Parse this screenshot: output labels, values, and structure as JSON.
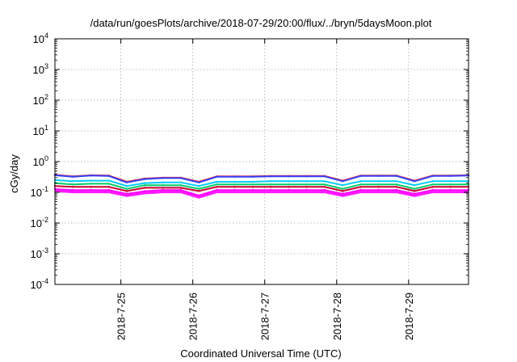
{
  "chart_data": {
    "type": "line",
    "title": "/data/run/goesPlots/archive/2018-07-29/20:00/flux/../bryn/5daysMoon.plot",
    "xlabel": "Coordinated Universal Time (UTC)",
    "ylabel": "cGy/day",
    "yscale": "log",
    "ylim": [
      0.0001,
      10000
    ],
    "xlim": [
      "2018-07-24T02:00",
      "2018-07-29T20:00"
    ],
    "grid": true,
    "legend": "none",
    "yticks": [
      {
        "base": "10",
        "exp": "-4",
        "value": 0.0001
      },
      {
        "base": "10",
        "exp": "-3",
        "value": 0.001
      },
      {
        "base": "10",
        "exp": "-2",
        "value": 0.01
      },
      {
        "base": "10",
        "exp": "-1",
        "value": 0.1
      },
      {
        "base": "10",
        "exp": "0",
        "value": 1
      },
      {
        "base": "10",
        "exp": "1",
        "value": 10
      },
      {
        "base": "10",
        "exp": "2",
        "value": 100
      },
      {
        "base": "10",
        "exp": "3",
        "value": 1000
      },
      {
        "base": "10",
        "exp": "4",
        "value": 10000
      }
    ],
    "xticks": [
      {
        "label": "2018-7-25",
        "value": "2018-07-25T00:00"
      },
      {
        "label": "2018-7-26",
        "value": "2018-07-26T00:00"
      },
      {
        "label": "2018-7-27",
        "value": "2018-07-27T00:00"
      },
      {
        "label": "2018-7-28",
        "value": "2018-07-28T00:00"
      },
      {
        "label": "2018-7-29",
        "value": "2018-07-29T00:00"
      }
    ],
    "x": [
      "2018-07-24T02:00",
      "2018-07-24T08:00",
      "2018-07-24T14:00",
      "2018-07-24T20:00",
      "2018-07-25T02:00",
      "2018-07-25T08:00",
      "2018-07-25T14:00",
      "2018-07-25T20:00",
      "2018-07-26T02:00",
      "2018-07-26T08:00",
      "2018-07-26T14:00",
      "2018-07-26T20:00",
      "2018-07-27T02:00",
      "2018-07-27T08:00",
      "2018-07-27T14:00",
      "2018-07-27T20:00",
      "2018-07-28T02:00",
      "2018-07-28T08:00",
      "2018-07-28T14:00",
      "2018-07-28T20:00",
      "2018-07-29T02:00",
      "2018-07-29T08:00",
      "2018-07-29T14:00",
      "2018-07-29T20:00"
    ],
    "series": [
      {
        "color": "#ff00ff",
        "style": "filled-spiky",
        "values": [
          0.13,
          0.12,
          0.12,
          0.12,
          0.09,
          0.11,
          0.12,
          0.12,
          0.08,
          0.12,
          0.12,
          0.12,
          0.12,
          0.12,
          0.12,
          0.12,
          0.09,
          0.12,
          0.12,
          0.12,
          0.09,
          0.12,
          0.12,
          0.12
        ]
      },
      {
        "color": "#cc0033",
        "values": [
          0.16,
          0.15,
          0.15,
          0.15,
          0.11,
          0.14,
          0.14,
          0.14,
          0.11,
          0.15,
          0.15,
          0.15,
          0.15,
          0.15,
          0.15,
          0.15,
          0.11,
          0.15,
          0.15,
          0.15,
          0.11,
          0.15,
          0.15,
          0.15
        ]
      },
      {
        "color": "#00cc66",
        "values": [
          0.2,
          0.18,
          0.19,
          0.19,
          0.13,
          0.17,
          0.17,
          0.17,
          0.13,
          0.18,
          0.18,
          0.18,
          0.18,
          0.18,
          0.18,
          0.18,
          0.13,
          0.18,
          0.18,
          0.18,
          0.13,
          0.18,
          0.18,
          0.18
        ]
      },
      {
        "color": "#00ccff",
        "values": [
          0.25,
          0.23,
          0.24,
          0.24,
          0.16,
          0.2,
          0.21,
          0.21,
          0.16,
          0.22,
          0.22,
          0.22,
          0.23,
          0.23,
          0.23,
          0.23,
          0.17,
          0.23,
          0.23,
          0.23,
          0.17,
          0.23,
          0.23,
          0.23
        ]
      },
      {
        "color": "#ff2222",
        "values": [
          0.37,
          0.33,
          0.36,
          0.35,
          0.22,
          0.28,
          0.3,
          0.3,
          0.22,
          0.33,
          0.33,
          0.33,
          0.34,
          0.34,
          0.34,
          0.34,
          0.24,
          0.35,
          0.35,
          0.35,
          0.24,
          0.35,
          0.35,
          0.36
        ]
      },
      {
        "color": "#3344ff",
        "values": [
          0.36,
          0.32,
          0.35,
          0.34,
          0.21,
          0.27,
          0.29,
          0.29,
          0.21,
          0.32,
          0.32,
          0.32,
          0.33,
          0.33,
          0.33,
          0.33,
          0.23,
          0.34,
          0.34,
          0.34,
          0.23,
          0.34,
          0.34,
          0.35
        ]
      }
    ]
  }
}
